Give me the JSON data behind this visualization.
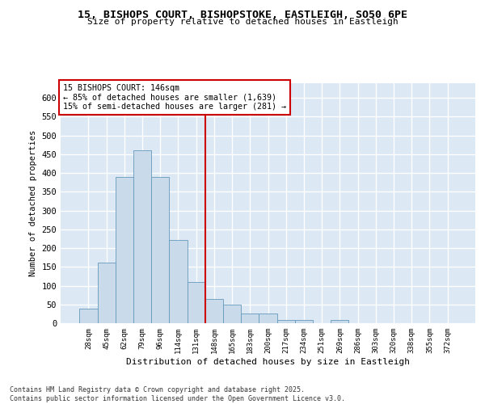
{
  "title_line1": "15, BISHOPS COURT, BISHOPSTOKE, EASTLEIGH, SO50 6PE",
  "title_line2": "Size of property relative to detached houses in Eastleigh",
  "xlabel": "Distribution of detached houses by size in Eastleigh",
  "ylabel": "Number of detached properties",
  "categories": [
    "28sqm",
    "45sqm",
    "62sqm",
    "79sqm",
    "96sqm",
    "114sqm",
    "131sqm",
    "148sqm",
    "165sqm",
    "183sqm",
    "200sqm",
    "217sqm",
    "234sqm",
    "251sqm",
    "269sqm",
    "286sqm",
    "303sqm",
    "320sqm",
    "338sqm",
    "355sqm",
    "372sqm"
  ],
  "values": [
    38,
    162,
    390,
    460,
    390,
    222,
    110,
    65,
    50,
    25,
    25,
    8,
    8,
    0,
    8,
    0,
    0,
    0,
    0,
    0,
    0
  ],
  "bar_color": "#c9daea",
  "bar_edge_color": "#6699bb",
  "vline_color": "#cc0000",
  "vline_x": 6.5,
  "annotation_text": "15 BISHOPS COURT: 146sqm\n← 85% of detached houses are smaller (1,639)\n15% of semi-detached houses are larger (281) →",
  "annotation_box_color": "#ffffff",
  "annotation_box_edge": "#cc0000",
  "bg_color": "#dce8f4",
  "grid_color": "#ffffff",
  "footer_text": "Contains HM Land Registry data © Crown copyright and database right 2025.\nContains public sector information licensed under the Open Government Licence v3.0.",
  "ylim": [
    0,
    640
  ],
  "yticks": [
    0,
    50,
    100,
    150,
    200,
    250,
    300,
    350,
    400,
    450,
    500,
    550,
    600
  ]
}
